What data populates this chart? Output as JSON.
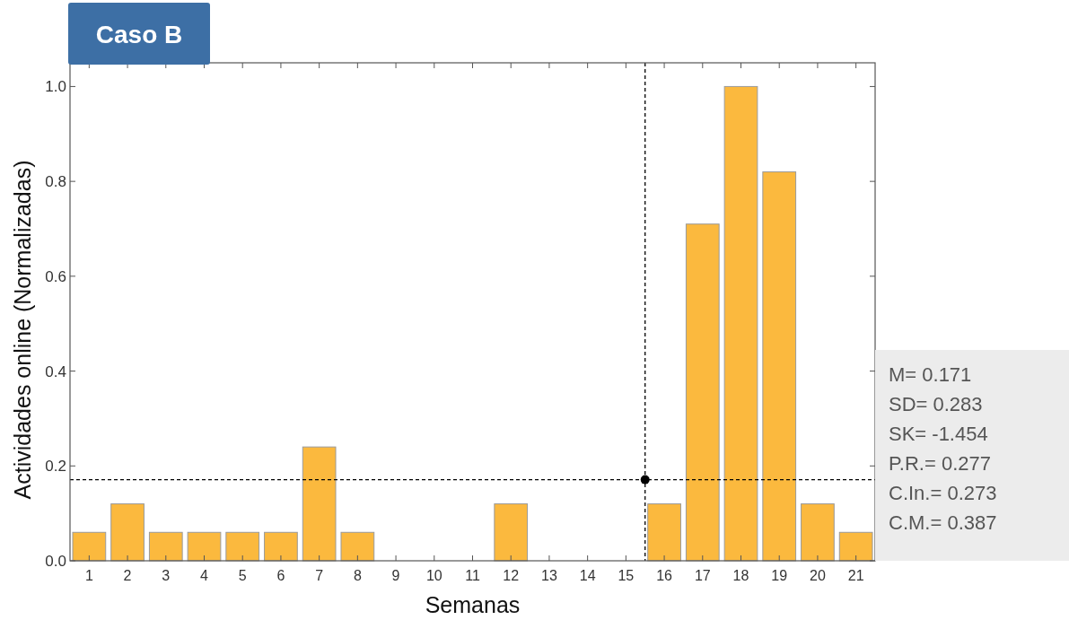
{
  "chart_data": {
    "type": "bar",
    "title": "Caso B",
    "xlabel": "Semanas",
    "ylabel": "Actividades online (Normalizadas)",
    "x": [
      1,
      2,
      3,
      4,
      5,
      6,
      7,
      8,
      9,
      10,
      11,
      12,
      13,
      14,
      15,
      16,
      17,
      18,
      19,
      20,
      21
    ],
    "series": [
      {
        "color": "#fbb93e",
        "values": [
          0.06,
          0.12,
          0.06,
          0.06,
          0.06,
          0.06,
          0.24,
          0.06,
          0,
          0,
          0,
          0.12,
          0,
          0,
          0,
          0.12,
          0.71,
          1.0,
          0.82,
          0.12,
          0.06
        ]
      },
      {
        "type": "scatter",
        "color": "#000000",
        "x": [
          15.5
        ],
        "values": [
          0.171
        ]
      }
    ],
    "xlim": [
      0.5,
      21.5
    ],
    "xticks": [
      1,
      2,
      3,
      4,
      5,
      6,
      7,
      8,
      9,
      10,
      11,
      12,
      13,
      14,
      15,
      16,
      17,
      18,
      19,
      20,
      21
    ],
    "ylim": [
      0,
      1.05
    ],
    "yticks": [
      {
        "value": 0,
        "label": "0.0"
      },
      {
        "value": 0.2,
        "label": "0.2"
      },
      {
        "value": 0.4,
        "label": "0.4"
      },
      {
        "value": 0.6,
        "label": "0.6"
      },
      {
        "value": 0.8,
        "label": "0.8"
      },
      {
        "value": 1,
        "label": "1.0"
      }
    ],
    "ref_lines": [
      {
        "axis": "y",
        "value": 0.171,
        "line_style": "dashed",
        "color": "#000000"
      },
      {
        "axis": "x",
        "value": 15.5,
        "line_style": "dashed",
        "color": "#000000"
      }
    ],
    "annotations": [
      "M= 0.171",
      "SD= 0.283",
      "SK= -1.454",
      "P.R.= 0.277",
      "C.In.= 0.273",
      "C.M.= 0.387"
    ],
    "grid": false
  }
}
